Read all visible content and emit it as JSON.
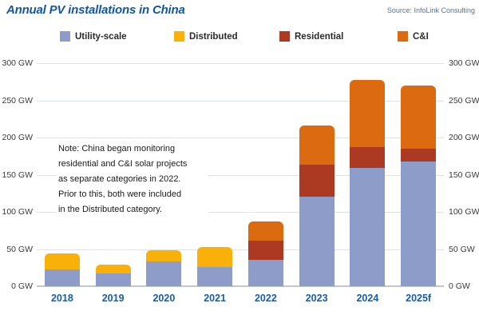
{
  "header": {
    "title": "Annual PV installations in China",
    "source": "Source: InfoLink Consulting"
  },
  "note": "Note: China began monitoring\nresidential and C&I solar projects\nas separate categories in 2022.\nPrior to this, both were included\nin the Distributed category.",
  "colors": {
    "title_blue": "#1356A5",
    "axis_year_blue": "#1A5CA8",
    "source_blue": "#54749E",
    "gridline": "#DFE2E8",
    "baseline": "#C2C7CF",
    "utility_scale": "#8E9CC9",
    "distributed": "#F9B008",
    "residential": "#AC3A22",
    "c_and_i": "#DC6A10"
  },
  "chart_data": {
    "type": "bar",
    "stacked": true,
    "title": "Annual PV installations in China",
    "unit": "GW",
    "categories": [
      "2018",
      "2019",
      "2020",
      "2021",
      "2022",
      "2023",
      "2024",
      "2025f"
    ],
    "series": [
      {
        "name": "Utility-scale",
        "color": "#8E9CC9",
        "values": [
          23,
          17,
          33,
          26,
          36,
          120,
          159,
          168
        ]
      },
      {
        "name": "Distributed",
        "color": "#F9B008",
        "values": [
          21,
          12,
          15,
          27,
          0,
          0,
          0,
          0
        ]
      },
      {
        "name": "Residential",
        "color": "#AC3A22",
        "values": [
          0,
          0,
          0,
          0,
          25,
          43,
          28,
          17
        ]
      },
      {
        "name": "C&I",
        "color": "#DC6A10",
        "values": [
          0,
          0,
          0,
          0,
          26,
          53,
          90,
          85
        ]
      }
    ],
    "totals": [
      44,
      29,
      48,
      53,
      87,
      216,
      277,
      270
    ],
    "ylim": [
      0,
      300
    ],
    "ytick_step": 50,
    "yticks": [
      {
        "value": 0,
        "label": "0 GW"
      },
      {
        "value": 50,
        "label": "50 GW"
      },
      {
        "value": 100,
        "label": "100 GW"
      },
      {
        "value": 150,
        "label": "150 GW"
      },
      {
        "value": 200,
        "label": "200 GW"
      },
      {
        "value": 250,
        "label": "250 GW"
      },
      {
        "value": 300,
        "label": "300 GW"
      }
    ],
    "y_axis_sides": "both",
    "grid": "horizontal",
    "legend_position": "top"
  }
}
